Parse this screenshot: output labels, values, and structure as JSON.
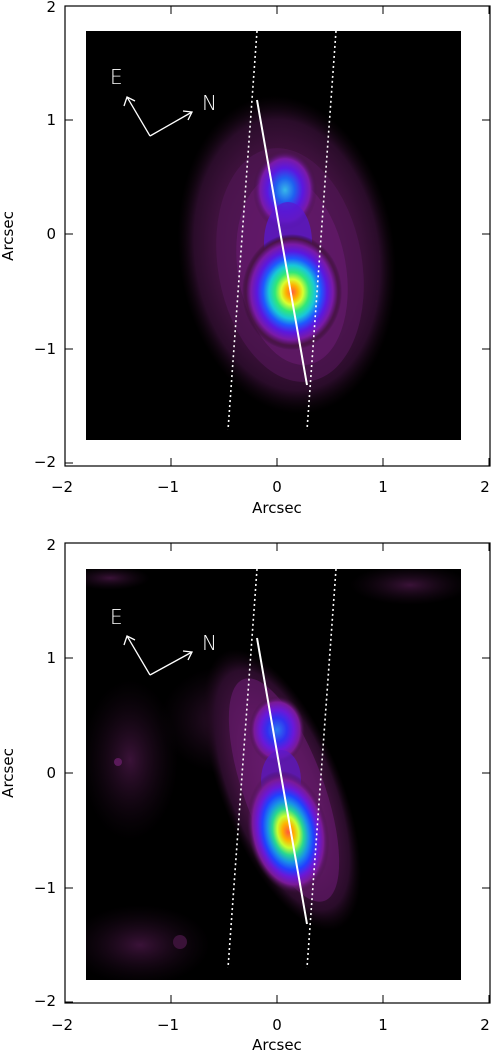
{
  "chart_data": [
    {
      "type": "heatmap",
      "xlabel": "Arcsec",
      "ylabel": "Arcsec",
      "xlim": [
        -2,
        2
      ],
      "ylim": [
        -2,
        2
      ],
      "xticks": [
        "−2",
        "−1",
        "0",
        "1",
        "2"
      ],
      "yticks": [
        "−2",
        "−1",
        "0",
        "1",
        "2"
      ],
      "image_extent": {
        "x": [
          -1.8,
          1.75
        ],
        "y": [
          -1.8,
          1.75
        ]
      },
      "compass": {
        "east_label": "E",
        "north_label": "N"
      },
      "peaks": [
        {
          "x": 0.16,
          "y": -0.57,
          "intensity": 1.0
        },
        {
          "x": 0.08,
          "y": 0.38,
          "intensity": 0.55
        }
      ],
      "axis_line": {
        "x1": -0.18,
        "y1": 1.15,
        "x2": 0.3,
        "y2": -1.3
      },
      "slit_edges": [
        {
          "x1": -0.18,
          "y1": 1.75,
          "x2": -0.45,
          "y2": -1.7
        },
        {
          "x1": 0.58,
          "y1": 1.75,
          "x2": 0.3,
          "y2": -1.7
        }
      ]
    },
    {
      "type": "heatmap",
      "xlabel": "Arcsec",
      "ylabel": "Arcsec",
      "xlim": [
        -2,
        2
      ],
      "ylim": [
        -2,
        2
      ],
      "xticks": [
        "−2",
        "−1",
        "0",
        "1",
        "2"
      ],
      "yticks": [
        "−2",
        "−1",
        "0",
        "1",
        "2"
      ],
      "image_extent": {
        "x": [
          -1.8,
          1.75
        ],
        "y": [
          -1.8,
          1.75
        ]
      },
      "compass": {
        "east_label": "E",
        "north_label": "N"
      },
      "peaks": [
        {
          "x": 0.12,
          "y": -0.6,
          "intensity": 1.0
        },
        {
          "x": 0.02,
          "y": 0.35,
          "intensity": 0.45
        }
      ],
      "axis_line": {
        "x1": -0.18,
        "y1": 1.15,
        "x2": 0.3,
        "y2": -1.3
      },
      "slit_edges": [
        {
          "x1": -0.18,
          "y1": 1.75,
          "x2": -0.45,
          "y2": -1.7
        },
        {
          "x1": 0.58,
          "y1": 1.75,
          "x2": 0.3,
          "y2": -1.7
        }
      ]
    }
  ]
}
